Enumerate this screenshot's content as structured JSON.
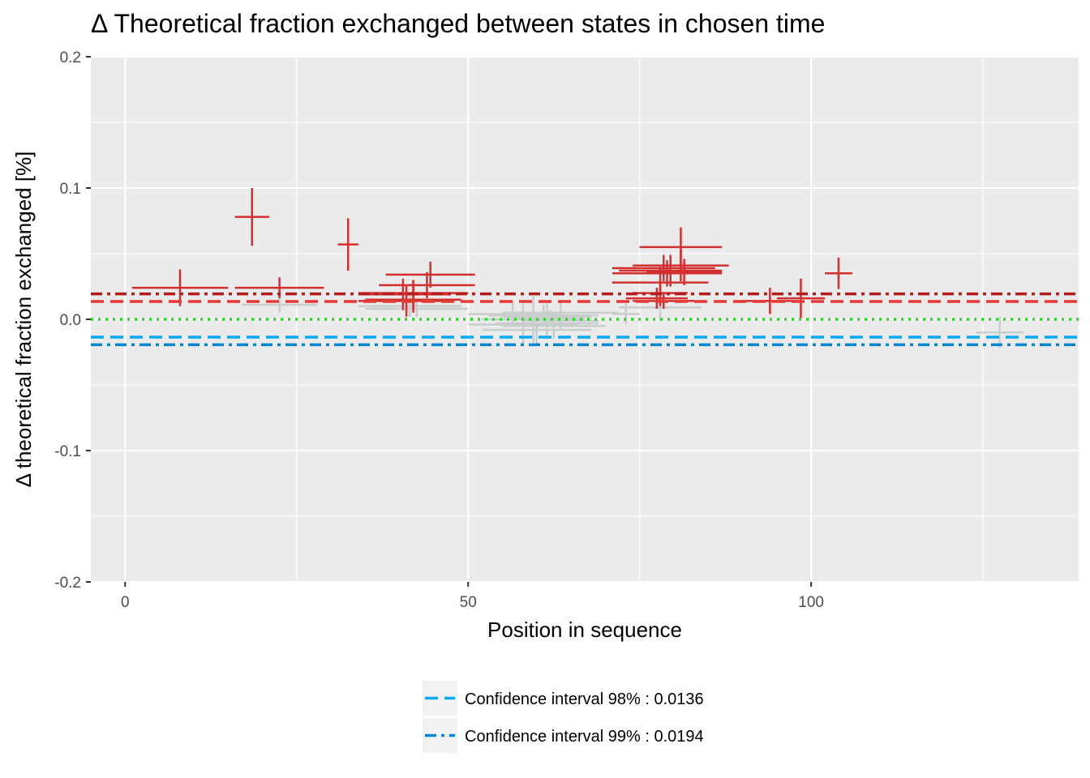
{
  "chart_data": {
    "type": "scatter",
    "title": "Δ Theoretical fraction exchanged between states in chosen time",
    "xlabel": "Position in sequence",
    "ylabel": "Δ theoretical fraction exchanged [%]",
    "xlim": [
      -5,
      139
    ],
    "ylim": [
      -0.2,
      0.2
    ],
    "x_ticks": [
      0,
      50,
      100
    ],
    "x_tick_labels": [
      "0",
      "50",
      "100"
    ],
    "y_ticks": [
      -0.2,
      -0.1,
      0.0,
      0.1,
      0.2
    ],
    "y_tick_labels": [
      "-0.2",
      "-0.1",
      "0.0",
      "0.1",
      "0.2"
    ],
    "grid": true,
    "legend_position": "bottom",
    "colors": {
      "panel": "#ebebeb",
      "grid": "#ffffff",
      "significant": "#d32f2f",
      "insignificant": "#c8cdcd",
      "zero_line": "#22dd22",
      "ci_positive_98": "#e53935",
      "ci_positive_99": "#b71c1c",
      "ci_negative_98": "#03a9f4",
      "ci_negative_99": "#0288d1"
    },
    "reference_lines": [
      {
        "id": "ci98-pos",
        "y": 0.0136,
        "style": "dashed",
        "color_key": "ci_positive_98"
      },
      {
        "id": "ci99-pos",
        "y": 0.0194,
        "style": "dotdash",
        "color_key": "ci_positive_99"
      },
      {
        "id": "zero",
        "y": 0.0,
        "style": "dotted",
        "color_key": "zero_line"
      },
      {
        "id": "ci98-neg",
        "y": -0.0136,
        "style": "dashed",
        "color_key": "ci_negative_98"
      },
      {
        "id": "ci99-neg",
        "y": -0.0194,
        "style": "dotdash",
        "color_key": "ci_negative_99"
      }
    ],
    "series": [
      {
        "color_key": "significant",
        "points": [
          {
            "x_start": 1,
            "x_end": 15,
            "y": 0.024,
            "err": 0.014
          },
          {
            "x_start": 16,
            "x_end": 21,
            "y": 0.078,
            "err": 0.022
          },
          {
            "x_start": 16,
            "x_end": 29,
            "y": 0.024,
            "err": 0.008
          },
          {
            "x_start": 31,
            "x_end": 34,
            "y": 0.057,
            "err": 0.02
          },
          {
            "x_start": 34,
            "x_end": 50,
            "y": 0.02,
            "err": 0.01
          },
          {
            "x_start": 34,
            "x_end": 48,
            "y": 0.014,
            "err": 0.012
          },
          {
            "x_start": 35,
            "x_end": 49,
            "y": 0.015,
            "err": 0.01
          },
          {
            "x_start": 37,
            "x_end": 51,
            "y": 0.026,
            "err": 0.01
          },
          {
            "x_start": 34,
            "x_end": 47,
            "y": 0.019,
            "err": 0.012
          },
          {
            "x_start": 38,
            "x_end": 51,
            "y": 0.034,
            "err": 0.01
          },
          {
            "x_start": 71,
            "x_end": 86,
            "y": 0.039,
            "err": 0.01
          },
          {
            "x_start": 71,
            "x_end": 87,
            "y": 0.035,
            "err": 0.01
          },
          {
            "x_start": 72,
            "x_end": 87,
            "y": 0.037,
            "err": 0.012
          },
          {
            "x_start": 75,
            "x_end": 87,
            "y": 0.055,
            "err": 0.015
          },
          {
            "x_start": 71,
            "x_end": 85,
            "y": 0.028,
            "err": 0.012
          },
          {
            "x_start": 74,
            "x_end": 82,
            "y": 0.02,
            "err": 0.01
          },
          {
            "x_start": 73,
            "x_end": 82,
            "y": 0.016,
            "err": 0.008
          },
          {
            "x_start": 74,
            "x_end": 83,
            "y": 0.014,
            "err": 0.006
          },
          {
            "x_start": 74,
            "x_end": 88,
            "y": 0.041,
            "err": 0.012
          },
          {
            "x_start": 76,
            "x_end": 87,
            "y": 0.036,
            "err": 0.01
          },
          {
            "x_start": 90,
            "x_end": 98,
            "y": 0.014,
            "err": 0.01
          },
          {
            "x_start": 95,
            "x_end": 102,
            "y": 0.016,
            "err": 0.015
          },
          {
            "x_start": 102,
            "x_end": 106,
            "y": 0.035,
            "err": 0.012
          }
        ]
      },
      {
        "color_key": "insignificant",
        "points": [
          {
            "x_start": 17,
            "x_end": 28,
            "y": 0.011,
            "err": 0.006
          },
          {
            "x_start": 34,
            "x_end": 49,
            "y": 0.01,
            "err": 0.008
          },
          {
            "x_start": 35,
            "x_end": 50,
            "y": 0.008,
            "err": 0.006
          },
          {
            "x_start": 50,
            "x_end": 63,
            "y": 0.004,
            "err": 0.01
          },
          {
            "x_start": 50,
            "x_end": 66,
            "y": -0.004,
            "err": 0.016
          },
          {
            "x_start": 52,
            "x_end": 67,
            "y": 0.0,
            "err": 0.018
          },
          {
            "x_start": 52,
            "x_end": 68,
            "y": -0.008,
            "err": 0.012
          },
          {
            "x_start": 53,
            "x_end": 69,
            "y": 0.003,
            "err": 0.008
          },
          {
            "x_start": 54,
            "x_end": 69,
            "y": -0.003,
            "err": 0.01
          },
          {
            "x_start": 55,
            "x_end": 68,
            "y": 0.002,
            "err": 0.012
          },
          {
            "x_start": 55,
            "x_end": 70,
            "y": -0.005,
            "err": 0.01
          },
          {
            "x_start": 57,
            "x_end": 67,
            "y": 0.001,
            "err": 0.006
          },
          {
            "x_start": 58,
            "x_end": 69,
            "y": -0.001,
            "err": 0.008
          },
          {
            "x_start": 55,
            "x_end": 72,
            "y": 0.005,
            "err": 0.01
          },
          {
            "x_start": 71,
            "x_end": 75,
            "y": 0.004,
            "err": 0.008
          },
          {
            "x_start": 72,
            "x_end": 84,
            "y": 0.009,
            "err": 0.01
          },
          {
            "x_start": 124,
            "x_end": 131,
            "y": -0.01,
            "err": 0.012
          }
        ]
      }
    ],
    "legend": [
      {
        "id": "ci98",
        "label": "Confidence interval 98% : 0.0136",
        "style": "dashed",
        "color_key": "ci_negative_98"
      },
      {
        "id": "ci99",
        "label": "Confidence interval 99% : 0.0194",
        "style": "dotdash",
        "color_key": "ci_negative_99"
      }
    ]
  }
}
